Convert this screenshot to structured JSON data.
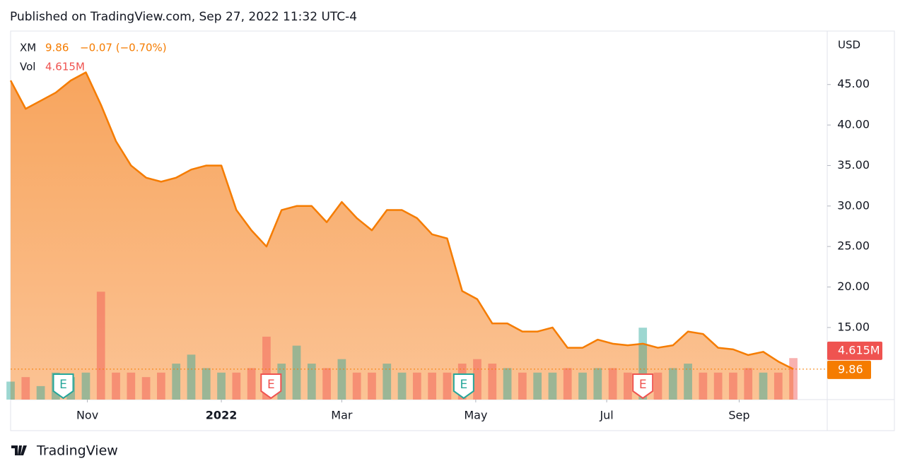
{
  "published": "Published on TradingView.com, Sep 27, 2022 11:32 UTC-4",
  "footer": "TradingView",
  "chart_data": {
    "type": "area",
    "currency": "USD",
    "series": [
      {
        "name": "XM",
        "color": "#f57c00",
        "fill": "#f9a45e",
        "values": [
          45.5,
          42,
          43,
          44,
          45.5,
          46.5,
          42.5,
          38,
          35,
          33.5,
          33,
          33.5,
          34.5,
          35,
          35,
          29.5,
          27,
          25,
          29.5,
          30,
          30,
          28,
          30.5,
          28.5,
          27,
          29.5,
          29.5,
          28.5,
          26.5,
          26,
          19.5,
          18.5,
          15.5,
          15.5,
          14.5,
          14.5,
          15,
          12.5,
          12.5,
          13.5,
          13,
          12.8,
          13,
          12.5,
          12.8,
          14.5,
          14.2,
          12.5,
          12.3,
          11.6,
          12,
          10.8,
          9.86
        ],
        "change_label": "−0.07 (−0.70%)"
      },
      {
        "name": "Vol",
        "color": "#ef5350",
        "axis": "volume",
        "values": [
          2,
          2.5,
          1.5,
          3,
          2.5,
          3,
          12,
          3,
          3,
          2.5,
          3,
          4,
          5,
          3.5,
          3,
          3,
          3.5,
          7,
          4,
          6,
          4,
          3.5,
          4.5,
          3,
          3,
          4,
          3,
          3,
          3,
          3,
          4,
          4.5,
          4,
          3.5,
          3,
          3,
          3,
          3.5,
          3,
          3.5,
          3.5,
          3,
          8,
          3,
          3.5,
          4,
          3,
          3,
          3,
          3.5,
          3,
          3,
          4.615
        ],
        "value_labels": {
          "52": "4.615M"
        }
      }
    ],
    "xlim": [
      0,
      54.25
    ],
    "xticks": [
      {
        "value": 5.1,
        "label": "Nov"
      },
      {
        "value": 14,
        "label": "2022"
      },
      {
        "value": 22,
        "label": "Mar"
      },
      {
        "value": 30.9,
        "label": "May"
      },
      {
        "value": 39.6,
        "label": "Jul"
      },
      {
        "value": 48.4,
        "label": "Sep"
      }
    ],
    "ylim": [
      6.1,
      51.6
    ],
    "yticks": [
      {
        "value": 15,
        "label": "15.00"
      },
      {
        "value": 20,
        "label": "20.00"
      },
      {
        "value": 25,
        "label": "25.00"
      },
      {
        "value": 30,
        "label": "30.00"
      },
      {
        "value": 35,
        "label": "35.00"
      },
      {
        "value": 40,
        "label": "40.00"
      },
      {
        "value": 45,
        "label": "45.00"
      }
    ],
    "volume_lim": [
      0,
      41
    ],
    "up_color": "#26a69a",
    "down_color": "#ef5350",
    "events": [
      {
        "label": "E",
        "x": 3.5,
        "color": "#26a69a"
      },
      {
        "label": "E",
        "x": 17.3,
        "color": "#ef5350"
      },
      {
        "label": "E",
        "x": 30.1,
        "color": "#26a69a"
      },
      {
        "label": "E",
        "x": 42,
        "color": "#ef5350"
      }
    ],
    "grid": false
  }
}
